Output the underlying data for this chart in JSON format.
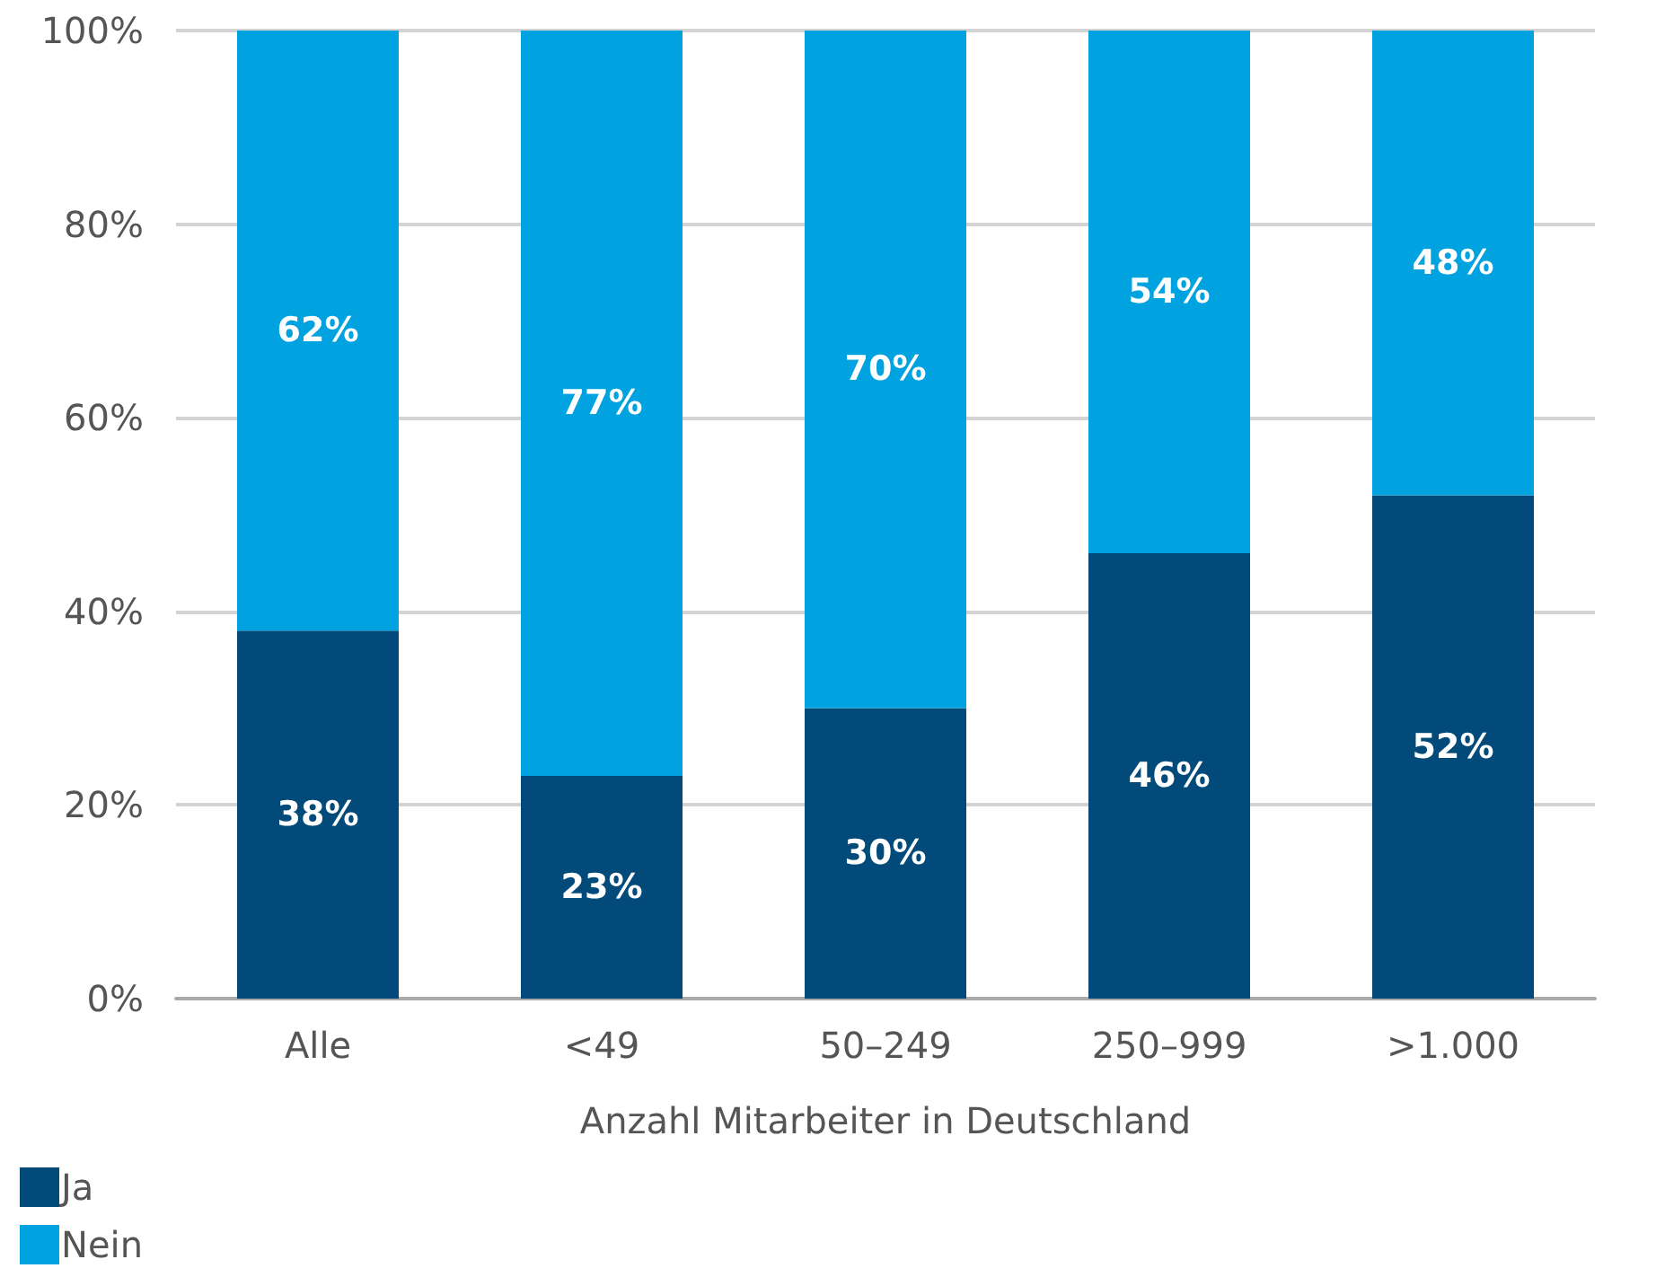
{
  "chart_data": {
    "type": "bar",
    "stacked": true,
    "xlabel": "Anzahl Mitarbeiter in Deutschland",
    "categories": [
      "Alle",
      "<49",
      "50–249",
      "250–999",
      ">1.000"
    ],
    "series": [
      {
        "name": "Ja",
        "color": "#024a7a",
        "values": [
          38,
          23,
          30,
          46,
          52
        ],
        "value_labels": [
          "38%",
          "23%",
          "30%",
          "46%",
          "52%"
        ]
      },
      {
        "name": "Nein",
        "color": "#00a2df",
        "values": [
          62,
          77,
          70,
          54,
          48
        ],
        "value_labels": [
          "62%",
          "77%",
          "70%",
          "54%",
          "48%"
        ]
      }
    ],
    "ylim": [
      0,
      100
    ],
    "yticks": [
      {
        "value": 0,
        "label": "0%"
      },
      {
        "value": 20,
        "label": "20%"
      },
      {
        "value": 40,
        "label": "40%"
      },
      {
        "value": 60,
        "label": "60%"
      },
      {
        "value": 80,
        "label": "80%"
      },
      {
        "value": 100,
        "label": "100%"
      }
    ],
    "grid": "y",
    "legend": "bottom left"
  }
}
